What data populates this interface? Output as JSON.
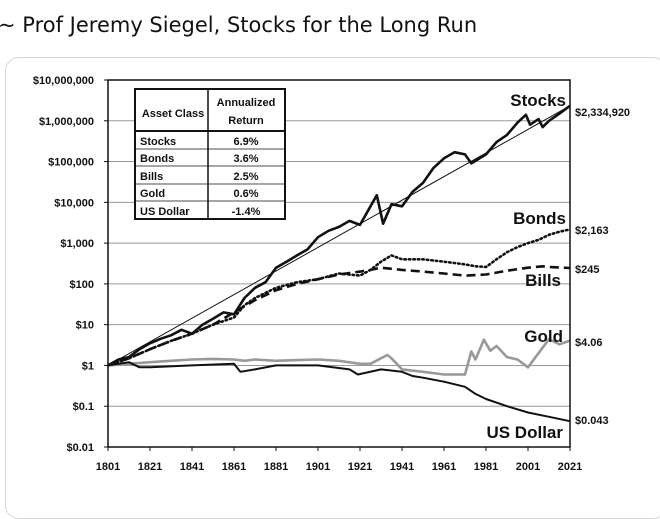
{
  "caption": "~ Prof Jeremy Siegel, Stocks for the Long Run",
  "colors": {
    "stocks": "#111111",
    "bonds": "#111111",
    "bills": "#111111",
    "gold": "#999999",
    "usdollar": "#111111",
    "trend": "#111111"
  },
  "chart_data": {
    "type": "line",
    "title": "",
    "xlabel": "",
    "ylabel": "",
    "yscale": "log",
    "xlim": [
      1801,
      2021
    ],
    "ylim": [
      0.01,
      10000000
    ],
    "x_ticks": [
      "1801",
      "1821",
      "1841",
      "1861",
      "1881",
      "1901",
      "1921",
      "1941",
      "1961",
      "1981",
      "2001",
      "2021"
    ],
    "y_ticks": [
      {
        "value": 10000000,
        "label": "$10,000,000"
      },
      {
        "value": 1000000,
        "label": "$1,000,000"
      },
      {
        "value": 100000,
        "label": "$100,000"
      },
      {
        "value": 10000,
        "label": "$10,000"
      },
      {
        "value": 1000,
        "label": "$1,000"
      },
      {
        "value": 100,
        "label": "$100"
      },
      {
        "value": 10,
        "label": "$10"
      },
      {
        "value": 1,
        "label": "$1"
      },
      {
        "value": 0.1,
        "label": "$0.1"
      },
      {
        "value": 0.01,
        "label": "$0.01"
      }
    ],
    "series": [
      {
        "name": "Stocks",
        "end_label": "$2,334,920",
        "style": "solid-thick",
        "x": [
          1801,
          1806,
          1811,
          1816,
          1821,
          1826,
          1831,
          1836,
          1841,
          1846,
          1851,
          1856,
          1861,
          1866,
          1871,
          1876,
          1881,
          1886,
          1891,
          1896,
          1901,
          1906,
          1911,
          1916,
          1921,
          1926,
          1929,
          1932,
          1936,
          1941,
          1946,
          1951,
          1956,
          1961,
          1966,
          1971,
          1974,
          1981,
          1986,
          1991,
          1996,
          2000,
          2002,
          2006,
          2008,
          2011,
          2016,
          2021
        ],
        "values": [
          1,
          1.4,
          1.6,
          2.5,
          3.5,
          4.5,
          5.5,
          7.5,
          6,
          10,
          14,
          20,
          18,
          45,
          80,
          110,
          250,
          350,
          500,
          700,
          1400,
          2000,
          2500,
          3500,
          2800,
          8000,
          15000,
          3000,
          9000,
          8000,
          18000,
          30000,
          70000,
          120000,
          170000,
          150000,
          90000,
          150000,
          300000,
          450000,
          900000,
          1400000,
          800000,
          1100000,
          700000,
          1000000,
          1500000,
          2334920
        ]
      },
      {
        "name": "Bonds",
        "end_label": "$2,163",
        "style": "dotted",
        "x": [
          1801,
          1811,
          1821,
          1831,
          1841,
          1851,
          1861,
          1866,
          1871,
          1881,
          1891,
          1901,
          1911,
          1921,
          1926,
          1931,
          1936,
          1941,
          1951,
          1961,
          1971,
          1976,
          1981,
          1986,
          1991,
          1996,
          2001,
          2006,
          2011,
          2016,
          2021
        ],
        "values": [
          1,
          1.5,
          2.5,
          4,
          6,
          10,
          15,
          30,
          45,
          80,
          110,
          130,
          180,
          160,
          220,
          350,
          500,
          400,
          400,
          350,
          300,
          270,
          260,
          400,
          600,
          800,
          1000,
          1200,
          1600,
          1900,
          2163
        ]
      },
      {
        "name": "Bills",
        "end_label": "$245",
        "style": "dashed",
        "x": [
          1801,
          1811,
          1821,
          1831,
          1841,
          1851,
          1861,
          1871,
          1881,
          1891,
          1901,
          1911,
          1921,
          1926,
          1931,
          1941,
          1951,
          1961,
          1971,
          1981,
          1991,
          2001,
          2008,
          2011,
          2021
        ],
        "values": [
          1,
          1.5,
          2.5,
          4,
          6,
          10,
          20,
          40,
          70,
          100,
          130,
          170,
          200,
          220,
          250,
          220,
          200,
          180,
          160,
          170,
          210,
          250,
          270,
          260,
          245
        ]
      },
      {
        "name": "Gold",
        "end_label": "$4.06",
        "style": "solid-gray",
        "x": [
          1801,
          1811,
          1821,
          1831,
          1841,
          1851,
          1861,
          1866,
          1871,
          1881,
          1891,
          1901,
          1911,
          1921,
          1926,
          1934,
          1936,
          1941,
          1951,
          1961,
          1971,
          1974,
          1976,
          1980,
          1983,
          1986,
          1991,
          1996,
          2001,
          2006,
          2011,
          2016,
          2021
        ],
        "values": [
          1,
          1.1,
          1.2,
          1.3,
          1.4,
          1.45,
          1.4,
          1.3,
          1.4,
          1.3,
          1.35,
          1.4,
          1.3,
          1.1,
          1.1,
          1.8,
          1.5,
          0.8,
          0.7,
          0.6,
          0.6,
          2.2,
          1.4,
          4.3,
          2.3,
          3,
          1.6,
          1.4,
          0.9,
          2,
          4.4,
          3.3,
          4.06
        ]
      },
      {
        "name": "US Dollar",
        "end_label": "$0.043",
        "style": "solid",
        "x": [
          1801,
          1811,
          1816,
          1821,
          1841,
          1861,
          1864,
          1871,
          1881,
          1901,
          1916,
          1920,
          1931,
          1941,
          1946,
          1951,
          1961,
          1971,
          1976,
          1981,
          1991,
          2001,
          2011,
          2021
        ],
        "values": [
          1,
          1.2,
          0.9,
          0.9,
          1,
          1.1,
          0.7,
          0.8,
          1,
          1,
          0.8,
          0.6,
          0.8,
          0.7,
          0.55,
          0.5,
          0.4,
          0.3,
          0.2,
          0.15,
          0.1,
          0.07,
          0.055,
          0.043
        ]
      },
      {
        "name": "Trend",
        "style": "thin",
        "x": [
          1801,
          2021
        ],
        "values": [
          1,
          2334920
        ]
      }
    ],
    "series_labels": [
      "Stocks",
      "Bonds",
      "Bills",
      "Gold",
      "US Dollar"
    ],
    "table": {
      "header": [
        "Asset Class",
        "Annualized Return"
      ],
      "header_lines": [
        "Annualized",
        "Return"
      ],
      "rows": [
        [
          "Stocks",
          "6.9%"
        ],
        [
          "Bonds",
          "3.6%"
        ],
        [
          "Bills",
          "2.5%"
        ],
        [
          "Gold",
          "0.6%"
        ],
        [
          "US Dollar",
          "-1.4%"
        ]
      ]
    }
  }
}
